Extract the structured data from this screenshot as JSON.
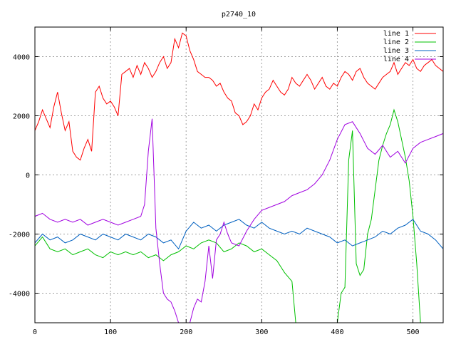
{
  "chart_data": {
    "type": "line",
    "title": "p2740_10",
    "xlabel": "",
    "ylabel": "",
    "xlim": [
      0,
      540
    ],
    "ylim": [
      -5000,
      5000
    ],
    "grid": true,
    "legend": "top-right",
    "x_ticks": [
      0,
      100,
      200,
      300,
      400,
      500
    ],
    "y_ticks": [
      -4000,
      -2000,
      0,
      2000,
      4000
    ],
    "x_tick_labels": [
      "0",
      "100",
      "200",
      "300",
      "400",
      "500"
    ],
    "y_tick_labels": [
      "-4000",
      "-2000",
      "0",
      "2000",
      "4000"
    ],
    "series": [
      {
        "name": "line 1",
        "color": "#ff0000",
        "x": [
          0,
          5,
          10,
          15,
          20,
          25,
          30,
          35,
          40,
          45,
          50,
          55,
          60,
          65,
          70,
          75,
          80,
          85,
          90,
          95,
          100,
          105,
          110,
          115,
          120,
          125,
          130,
          135,
          140,
          145,
          150,
          155,
          160,
          165,
          170,
          175,
          180,
          185,
          190,
          195,
          200,
          205,
          210,
          215,
          220,
          225,
          230,
          235,
          240,
          245,
          250,
          255,
          260,
          265,
          270,
          275,
          280,
          285,
          290,
          295,
          300,
          305,
          310,
          315,
          320,
          325,
          330,
          335,
          340,
          345,
          350,
          355,
          360,
          365,
          370,
          375,
          380,
          385,
          390,
          395,
          400,
          405,
          410,
          415,
          420,
          425,
          430,
          435,
          440,
          445,
          450,
          455,
          460,
          465,
          470,
          475,
          480,
          485,
          490,
          495,
          500,
          505,
          510,
          515,
          520,
          525,
          530,
          535,
          540
        ],
        "y": [
          1500,
          1800,
          2200,
          1900,
          1600,
          2300,
          2800,
          2100,
          1500,
          1800,
          800,
          600,
          500,
          900,
          1200,
          800,
          2800,
          3000,
          2600,
          2400,
          2500,
          2300,
          2000,
          3400,
          3500,
          3600,
          3300,
          3700,
          3400,
          3800,
          3600,
          3300,
          3500,
          3800,
          4000,
          3600,
          3800,
          4600,
          4300,
          4800,
          4700,
          4200,
          3900,
          3500,
          3400,
          3300,
          3300,
          3200,
          3000,
          3100,
          2800,
          2600,
          2500,
          2100,
          2000,
          1700,
          1800,
          2000,
          2400,
          2200,
          2600,
          2800,
          2900,
          3200,
          3000,
          2800,
          2700,
          2900,
          3300,
          3100,
          3000,
          3200,
          3400,
          3200,
          2900,
          3100,
          3300,
          3000,
          2900,
          3100,
          3000,
          3300,
          3500,
          3400,
          3200,
          3500,
          3600,
          3300,
          3100,
          3000,
          2900,
          3100,
          3300,
          3400,
          3500,
          3800,
          3400,
          3600,
          3800,
          3700,
          3900,
          3600,
          3500,
          3700,
          3800,
          3900,
          3700,
          3600,
          3500
        ]
      },
      {
        "name": "line 2",
        "color": "#00c000",
        "x": [
          0,
          10,
          20,
          30,
          40,
          50,
          60,
          70,
          80,
          90,
          100,
          110,
          120,
          130,
          140,
          150,
          160,
          170,
          180,
          190,
          200,
          210,
          220,
          230,
          240,
          250,
          260,
          270,
          280,
          290,
          300,
          310,
          320,
          330,
          340,
          345,
          350,
          360,
          370,
          380,
          390,
          395,
          400,
          405,
          410,
          415,
          420,
          425,
          430,
          435,
          440,
          445,
          450,
          455,
          460,
          465,
          470,
          475,
          480,
          485,
          490,
          495,
          500,
          505,
          510,
          515,
          520,
          525,
          530,
          535,
          540
        ],
        "y": [
          -2400,
          -2100,
          -2500,
          -2600,
          -2500,
          -2700,
          -2600,
          -2500,
          -2700,
          -2800,
          -2600,
          -2700,
          -2600,
          -2700,
          -2600,
          -2800,
          -2700,
          -2900,
          -2700,
          -2600,
          -2400,
          -2500,
          -2300,
          -2200,
          -2300,
          -2600,
          -2500,
          -2300,
          -2400,
          -2600,
          -2500,
          -2700,
          -2900,
          -3300,
          -3600,
          -5000,
          -5000,
          -5000,
          -5000,
          -5000,
          -5000,
          -5000,
          -5000,
          -4000,
          -3800,
          500,
          1500,
          -3000,
          -3400,
          -3200,
          -2000,
          -1500,
          -500,
          500,
          1000,
          1400,
          1700,
          2200,
          1800,
          1200,
          600,
          -200,
          -1400,
          -3000,
          -5000,
          -5000,
          -5000,
          -5000,
          -5000,
          -5000,
          -5000
        ]
      },
      {
        "name": "line 3",
        "color": "#0060c0",
        "x": [
          0,
          10,
          20,
          30,
          40,
          50,
          60,
          70,
          80,
          90,
          100,
          110,
          120,
          130,
          140,
          150,
          160,
          170,
          180,
          190,
          200,
          210,
          220,
          230,
          240,
          250,
          260,
          270,
          280,
          290,
          300,
          310,
          320,
          330,
          340,
          350,
          360,
          370,
          380,
          390,
          400,
          410,
          420,
          430,
          440,
          450,
          460,
          470,
          480,
          490,
          500,
          510,
          520,
          530,
          540
        ],
        "y": [
          -2300,
          -2000,
          -2200,
          -2100,
          -2300,
          -2200,
          -2000,
          -2100,
          -2200,
          -2000,
          -2100,
          -2200,
          -2000,
          -2100,
          -2200,
          -2000,
          -2100,
          -2300,
          -2200,
          -2500,
          -1900,
          -1600,
          -1800,
          -1700,
          -1900,
          -1700,
          -1600,
          -1500,
          -1700,
          -1800,
          -1600,
          -1800,
          -1900,
          -2000,
          -1900,
          -2000,
          -1800,
          -1900,
          -2000,
          -2100,
          -2300,
          -2200,
          -2400,
          -2300,
          -2200,
          -2100,
          -1900,
          -2000,
          -1800,
          -1700,
          -1500,
          -1900,
          -2000,
          -2200,
          -2500
        ]
      },
      {
        "name": "line 4",
        "color": "#a000e0",
        "x": [
          0,
          10,
          20,
          30,
          40,
          50,
          60,
          70,
          80,
          90,
          100,
          110,
          120,
          130,
          140,
          145,
          150,
          155,
          160,
          165,
          170,
          175,
          180,
          185,
          190,
          195,
          200,
          205,
          210,
          215,
          220,
          225,
          230,
          235,
          240,
          245,
          250,
          255,
          260,
          270,
          280,
          290,
          300,
          310,
          320,
          330,
          340,
          350,
          360,
          370,
          380,
          390,
          400,
          410,
          420,
          430,
          440,
          450,
          460,
          470,
          480,
          490,
          500,
          510,
          520,
          530,
          540
        ],
        "y": [
          -1400,
          -1300,
          -1500,
          -1600,
          -1500,
          -1600,
          -1500,
          -1700,
          -1600,
          -1500,
          -1600,
          -1700,
          -1600,
          -1500,
          -1400,
          -1000,
          800,
          1900,
          -1800,
          -3000,
          -4000,
          -4200,
          -4300,
          -4600,
          -5000,
          -5000,
          -5000,
          -5000,
          -4500,
          -4200,
          -4300,
          -3600,
          -2400,
          -3500,
          -2200,
          -2000,
          -1600,
          -2000,
          -2300,
          -2400,
          -1900,
          -1500,
          -1200,
          -1100,
          -1000,
          -900,
          -700,
          -600,
          -500,
          -300,
          0,
          500,
          1200,
          1700,
          1800,
          1400,
          900,
          700,
          1000,
          600,
          800,
          400,
          900,
          1100,
          1200,
          1300,
          1400
        ]
      }
    ]
  }
}
